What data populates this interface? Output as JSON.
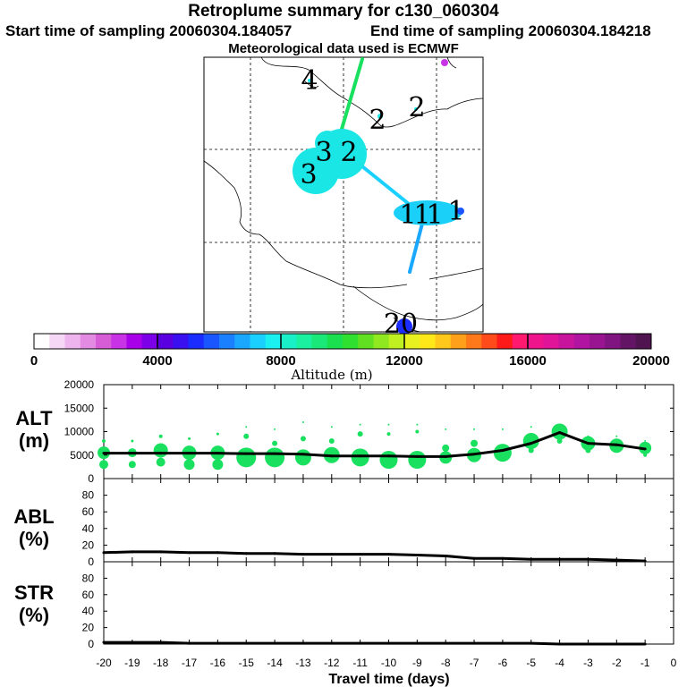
{
  "header": {
    "title": "Retroplume summary for c130_060304",
    "start": "Start time of sampling 20060304.184057",
    "end": "End time of sampling 20060304.184218",
    "met": "Meteorological data used is ECMWF"
  },
  "map": {
    "clusters": [
      {
        "label": "4",
        "size": "small"
      },
      {
        "label": "2",
        "size": "small"
      },
      {
        "label": "2",
        "size": "small"
      },
      {
        "label": "3",
        "size": "large"
      },
      {
        "label": "3",
        "size": "large"
      },
      {
        "label": "2",
        "size": "large"
      },
      {
        "label": "1",
        "size": "medium"
      },
      {
        "label": "1",
        "size": "medium"
      },
      {
        "label": "1",
        "size": "medium"
      },
      {
        "label": "1",
        "size": "medium"
      },
      {
        "label": "20",
        "size": "small"
      }
    ]
  },
  "colorbar": {
    "ticks": [
      "0",
      "4000",
      "8000",
      "12000",
      "16000",
      "20000"
    ],
    "label": "Altitude (m)",
    "colors": [
      "#ffffff",
      "#f6d8f6",
      "#eeb4ee",
      "#e38be3",
      "#d65dd6",
      "#c833e6",
      "#a800e8",
      "#7c00e8",
      "#5a00e0",
      "#3a10f0",
      "#1a2cff",
      "#1a56ff",
      "#1a80ff",
      "#1aa8ff",
      "#1ad0ff",
      "#1af0f0",
      "#1af0c8",
      "#1af0a0",
      "#1ae878",
      "#1ae050",
      "#30e030",
      "#60e020",
      "#90e820",
      "#c0f020",
      "#e8f020",
      "#ffe81a",
      "#ffc81a",
      "#ffa01a",
      "#ff781a",
      "#ff4a1a",
      "#ff1a1a",
      "#ff1a70",
      "#f0148c",
      "#e01498",
      "#c8149c",
      "#b014a0",
      "#981490",
      "#801480",
      "#641464",
      "#501450"
    ]
  },
  "chart_data": [
    {
      "type": "scatter",
      "panel": "ALT",
      "ylabel": "ALT (m)",
      "ylim": [
        0,
        20000
      ],
      "yticks": [
        "0",
        "5000",
        "10000",
        "15000",
        "20000"
      ],
      "x": [
        -20,
        -19,
        -18,
        -17,
        -16,
        -15,
        -14,
        -13,
        -12,
        -11,
        -10,
        -9,
        -8,
        -7,
        -6,
        -5,
        -4,
        -3,
        -2,
        -1
      ],
      "series": [
        {
          "name": "median altitude",
          "values": [
            5400,
            5400,
            5400,
            5400,
            5400,
            5300,
            5300,
            5200,
            4800,
            4800,
            4800,
            4700,
            4700,
            5200,
            6000,
            7500,
            9800,
            7500,
            7200,
            6300
          ]
        }
      ],
      "bubble_rows": [
        [
          5500,
          3000,
          8000
        ],
        [
          5500,
          3000,
          8000
        ],
        [
          6000,
          3500,
          9000
        ],
        [
          5500,
          3000,
          8500
        ],
        [
          5500,
          3000,
          9500
        ],
        [
          4500,
          9000,
          11000
        ],
        [
          4500,
          7500,
          10500
        ],
        [
          4500,
          8500,
          12000
        ],
        [
          5000,
          8000,
          11000
        ],
        [
          4500,
          9500,
          11500
        ],
        [
          4000,
          9500,
          11500
        ],
        [
          4000,
          10000,
          11500
        ],
        [
          4500,
          6500,
          10500
        ],
        [
          5000,
          7500,
          10500
        ],
        [
          5500,
          6500,
          10500
        ],
        [
          8000,
          6000,
          11000
        ],
        [
          10000,
          8000,
          9500
        ],
        [
          7500,
          6000,
          9000
        ],
        [
          7000,
          6000,
          9000
        ],
        [
          6500,
          5000,
          8000
        ]
      ]
    },
    {
      "type": "line",
      "panel": "ABL",
      "ylabel": "ABL (%)",
      "ylim": [
        0,
        100
      ],
      "yticks": [
        "0",
        "20",
        "40",
        "60",
        "80"
      ],
      "x": [
        -20,
        -19,
        -18,
        -17,
        -16,
        -15,
        -14,
        -13,
        -12,
        -11,
        -10,
        -9,
        -8,
        -7,
        -6,
        -5,
        -4,
        -3,
        -2,
        -1
      ],
      "values": [
        11,
        12,
        12,
        11,
        11,
        10,
        10,
        9,
        9,
        9,
        9,
        8,
        7,
        4,
        4,
        3,
        3,
        3,
        2,
        1
      ]
    },
    {
      "type": "line",
      "panel": "STR",
      "ylabel": "STR (%)",
      "ylim": [
        0,
        100
      ],
      "yticks": [
        "0",
        "20",
        "40",
        "60",
        "80"
      ],
      "x": [
        -20,
        -19,
        -18,
        -17,
        -16,
        -15,
        -14,
        -13,
        -12,
        -11,
        -10,
        -9,
        -8,
        -7,
        -6,
        -5,
        -4,
        -3,
        -2,
        -1
      ],
      "values": [
        2,
        2,
        2,
        1,
        1,
        1,
        1,
        1,
        1,
        1,
        1,
        1,
        1,
        1,
        1,
        1,
        0,
        0,
        0,
        0
      ]
    }
  ],
  "panel_labels": {
    "alt": [
      "ALT",
      "(m)"
    ],
    "abl": [
      "ABL",
      "(%)"
    ],
    "str": [
      "STR",
      "(%)"
    ]
  },
  "xaxis": {
    "title": "Travel time (days)",
    "ticks": [
      "-20",
      "-19",
      "-18",
      "-17",
      "-16",
      "-15",
      "-14",
      "-13",
      "-12",
      "-11",
      "-10",
      "-9",
      "-8",
      "-7",
      "-6",
      "-5",
      "-4",
      "-3",
      "-2",
      "-1",
      "0"
    ]
  }
}
